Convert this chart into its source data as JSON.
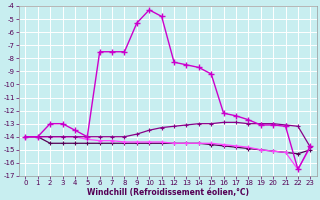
{
  "xlabel": "Windchill (Refroidissement éolien,°C)",
  "bg_color": "#c8eef0",
  "grid_color": "#ffffff",
  "line_color1": "#cc00cc",
  "line_color2": "#880088",
  "line_color3": "#550055",
  "line_color4": "#ff44ff",
  "x_values": [
    0,
    1,
    2,
    3,
    4,
    5,
    6,
    7,
    8,
    9,
    10,
    11,
    12,
    13,
    14,
    15,
    16,
    17,
    18,
    19,
    20,
    21,
    22,
    23
  ],
  "series1": [
    -14.0,
    -14.0,
    -13.0,
    -13.0,
    -13.5,
    -14.0,
    -7.5,
    -7.5,
    -7.5,
    -5.3,
    -4.3,
    -4.8,
    -8.3,
    -8.5,
    -8.7,
    -9.2,
    -12.2,
    -12.4,
    -12.7,
    -13.1,
    -13.1,
    -13.2,
    -16.5,
    -14.7
  ],
  "series2": [
    -14.0,
    -14.0,
    -14.0,
    -14.0,
    -14.0,
    -14.0,
    -14.0,
    -14.0,
    -14.0,
    -13.8,
    -13.5,
    -13.3,
    -13.2,
    -13.1,
    -13.0,
    -13.0,
    -12.9,
    -12.9,
    -13.0,
    -13.0,
    -13.0,
    -13.1,
    -13.2,
    -14.8
  ],
  "series3": [
    -14.0,
    -14.0,
    -14.5,
    -14.5,
    -14.5,
    -14.5,
    -14.5,
    -14.5,
    -14.5,
    -14.5,
    -14.5,
    -14.5,
    -14.5,
    -14.5,
    -14.5,
    -14.6,
    -14.7,
    -14.8,
    -14.9,
    -15.0,
    -15.1,
    -15.2,
    -15.3,
    -15.0
  ],
  "series4": [
    -14.0,
    -14.0,
    -14.0,
    -14.0,
    -14.0,
    -14.2,
    -14.3,
    -14.3,
    -14.4,
    -14.4,
    -14.4,
    -14.4,
    -14.5,
    -14.5,
    -14.5,
    -14.5,
    -14.6,
    -14.7,
    -14.8,
    -15.0,
    -15.1,
    -15.2,
    -16.5,
    -14.8
  ],
  "ylim": [
    -17,
    -4
  ],
  "xlim": [
    -0.5,
    23.5
  ],
  "yticks": [
    -17,
    -16,
    -15,
    -14,
    -13,
    -12,
    -11,
    -10,
    -9,
    -8,
    -7,
    -6,
    -5,
    -4
  ],
  "xticks": [
    0,
    1,
    2,
    3,
    4,
    5,
    6,
    7,
    8,
    9,
    10,
    11,
    12,
    13,
    14,
    15,
    16,
    17,
    18,
    19,
    20,
    21,
    22,
    23
  ],
  "tick_fontsize": 5,
  "xlabel_fontsize": 5.5
}
